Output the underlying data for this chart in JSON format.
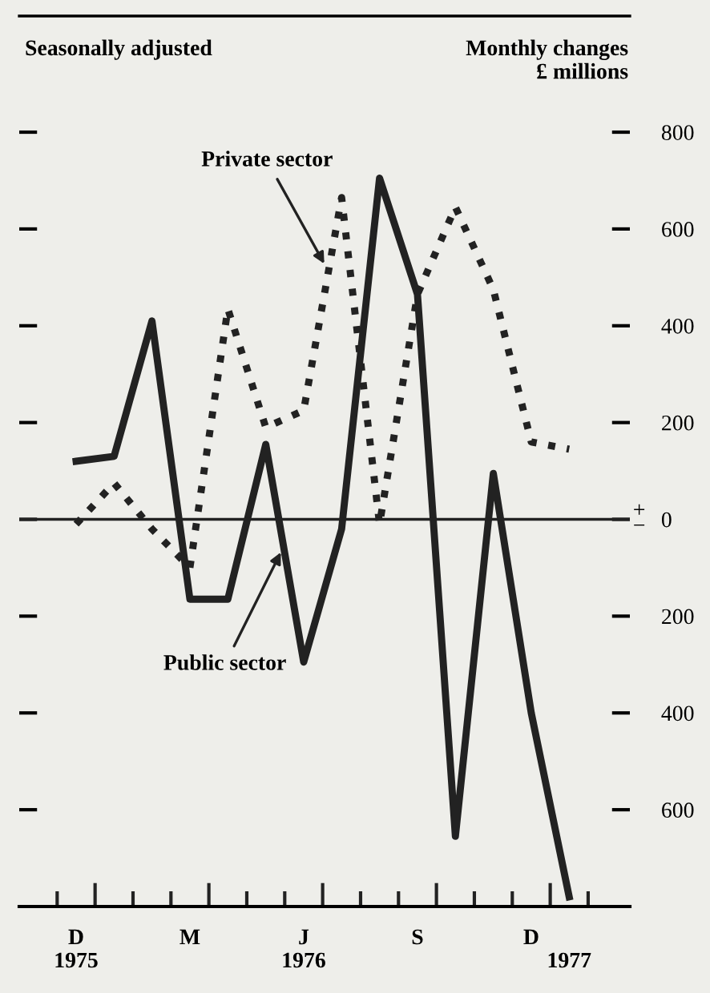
{
  "chart_data": {
    "type": "line",
    "subtitle": "Seasonally adjusted",
    "ylabel": "Monthly changes\n£ millions",
    "categories": [
      "D\n1975",
      null,
      null,
      "M",
      null,
      null,
      "J\n1976",
      null,
      null,
      "S",
      null,
      null,
      "D",
      "\n1977"
    ],
    "series": [
      {
        "name": "Private sector",
        "color": "#222222",
        "line_style": "dotted",
        "values": [
          -10,
          75,
          -20,
          -100,
          435,
          190,
          225,
          665,
          -10,
          465,
          645,
          475,
          160,
          145
        ]
      },
      {
        "name": "Public sector",
        "color": "#222222",
        "line_style": "solid",
        "values": [
          120,
          130,
          410,
          -165,
          -165,
          155,
          -295,
          -20,
          705,
          465,
          -655,
          95,
          -400,
          -780
        ]
      }
    ],
    "ylim": [
      -800,
      1040
    ],
    "yticks": [
      {
        "value": -600,
        "label": "600"
      },
      {
        "value": -400,
        "label": "400"
      },
      {
        "value": -200,
        "label": "200"
      },
      0,
      200,
      400,
      600,
      800
    ],
    "ref_lines": [
      {
        "axis": "y",
        "value": 0,
        "label": "+\n−",
        "color": "#222222"
      }
    ],
    "grid": false,
    "legend": false
  }
}
